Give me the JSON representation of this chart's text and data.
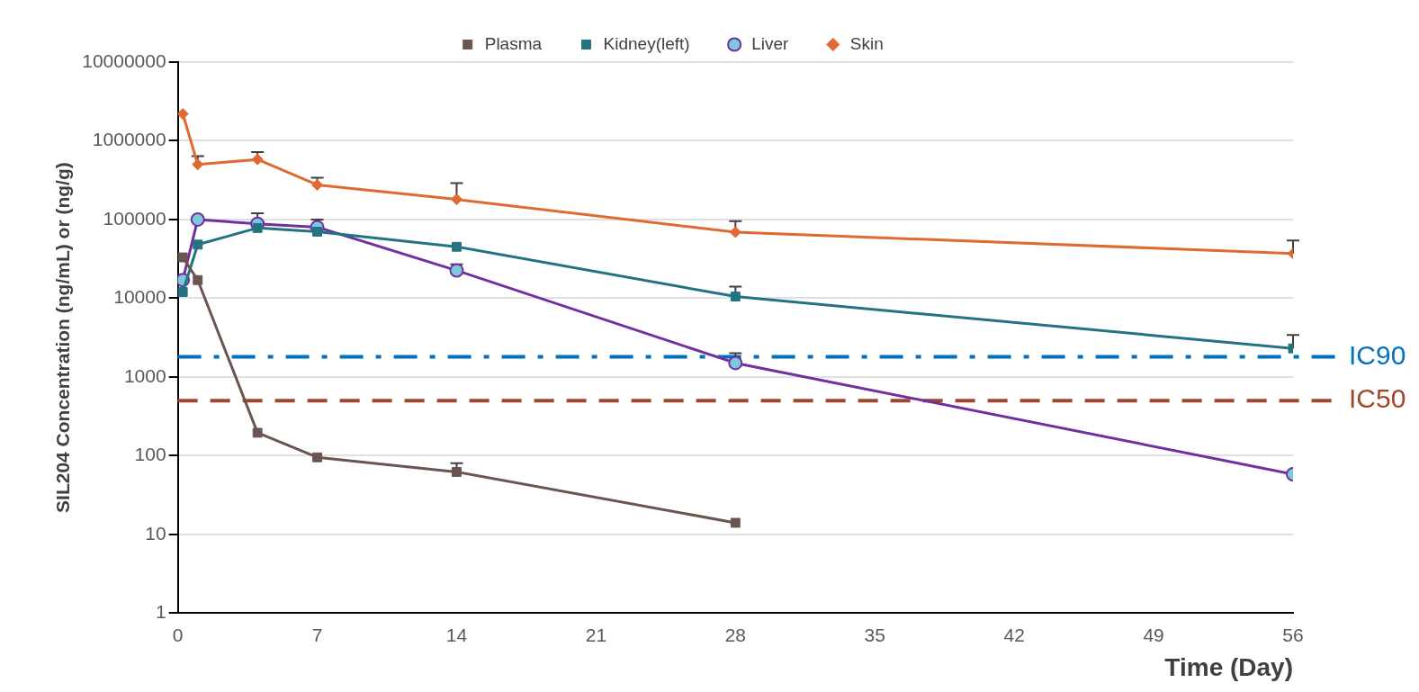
{
  "chart_data": {
    "type": "line",
    "xlabel": "Time (Day)",
    "ylabel": "SIL204 Concentration (ng/mL) or (ng/g)",
    "x": [
      0.25,
      1,
      4,
      7,
      14,
      28,
      56
    ],
    "xlim": [
      0,
      56
    ],
    "xticks": [
      0,
      7,
      14,
      21,
      28,
      35,
      42,
      49,
      56
    ],
    "log": "y",
    "ylim": [
      1,
      10000000
    ],
    "yticks": [
      1,
      10,
      100,
      1000,
      10000,
      100000,
      1000000,
      10000000
    ],
    "grid": "y",
    "legend": "top",
    "series": [
      {
        "name": "Plasma",
        "color": "#6b5550",
        "marker": "square",
        "values": [
          33000,
          17000,
          195,
          95,
          62,
          14,
          null
        ],
        "errors": [
          null,
          null,
          null,
          null,
          [
            62,
            80
          ],
          null,
          null
        ]
      },
      {
        "name": "Kidney(left)",
        "color": "#237383",
        "marker": "square",
        "values": [
          12000,
          48000,
          78000,
          70000,
          45000,
          10500,
          2300
        ],
        "errors": [
          null,
          null,
          null,
          null,
          null,
          [
            10500,
            14000
          ],
          [
            2300,
            3400
          ]
        ]
      },
      {
        "name": "Liver",
        "color": "#7030a0",
        "marker": "circle",
        "values": [
          17000,
          100000,
          88000,
          80000,
          22500,
          1500,
          58
        ],
        "errors": [
          null,
          null,
          [
            88000,
            120000
          ],
          [
            80000,
            100000
          ],
          [
            22500,
            27000
          ],
          [
            1500,
            2000
          ],
          null
        ]
      },
      {
        "name": "Skin",
        "color": "#e06a32",
        "marker": "diamond",
        "values": [
          2200000,
          500000,
          580000,
          275000,
          180000,
          69000,
          37000
        ],
        "errors": [
          null,
          [
            500000,
            640000
          ],
          [
            580000,
            720000
          ],
          [
            275000,
            340000
          ],
          [
            180000,
            290000
          ],
          [
            69000,
            95000
          ],
          [
            37000,
            54000
          ]
        ]
      }
    ],
    "ref_lines": [
      {
        "axis": "y",
        "value": 1800,
        "label": "IC90",
        "color": "#0070c0",
        "line_style": "dashdot"
      },
      {
        "axis": "y",
        "value": 500,
        "label": "IC50",
        "color": "#a0462a",
        "line_style": "dashed"
      }
    ]
  }
}
